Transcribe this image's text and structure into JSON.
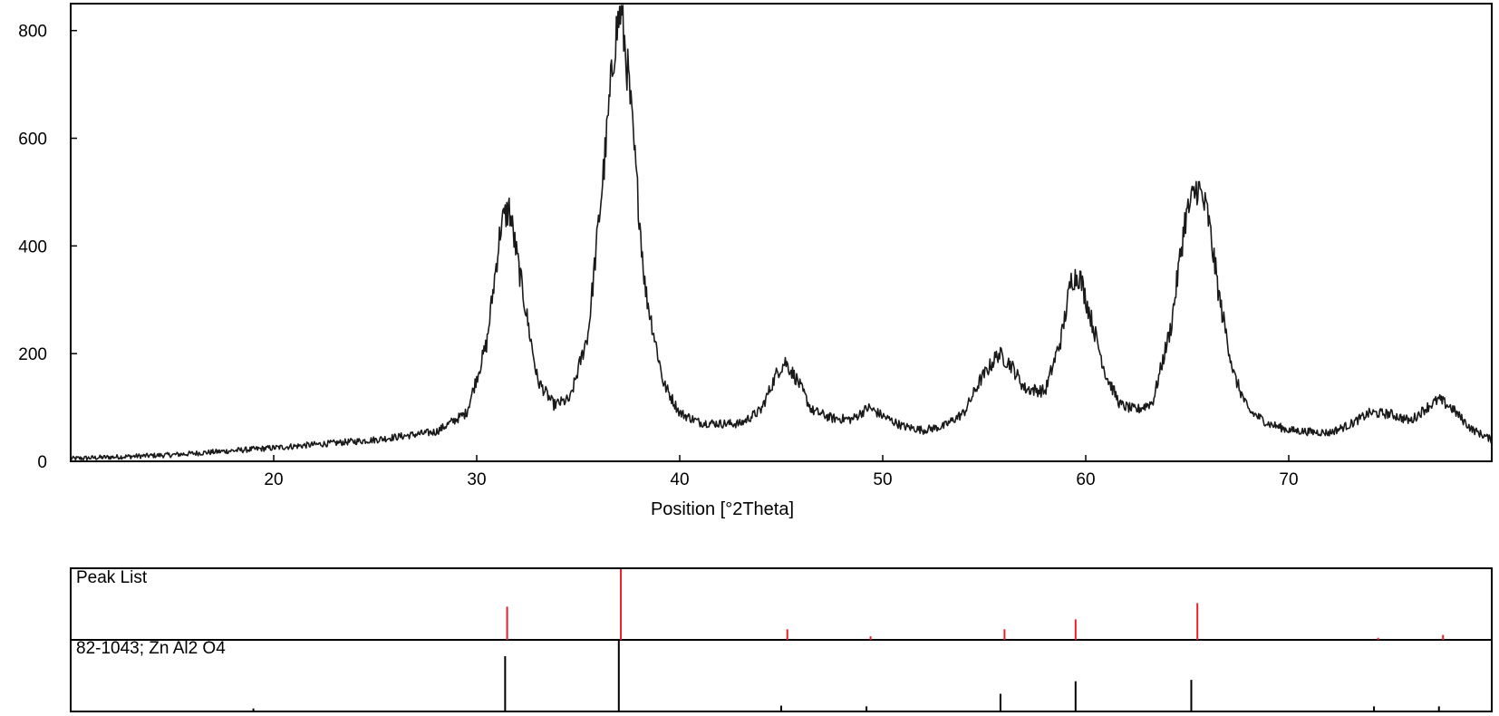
{
  "chart_data": {
    "type": "line",
    "xlabel": "Position [°2Theta]",
    "ylabel": "",
    "xlim": [
      10,
      80
    ],
    "ylim": [
      0,
      850
    ],
    "x_ticks": [
      20,
      30,
      40,
      50,
      60,
      70
    ],
    "y_ticks": [
      0,
      200,
      400,
      600,
      800
    ],
    "grid": false,
    "pattern_profile": [
      [
        10,
        5
      ],
      [
        15,
        12
      ],
      [
        20,
        25
      ],
      [
        25,
        40
      ],
      [
        28,
        55
      ],
      [
        29.5,
        90
      ],
      [
        30.5,
        220
      ],
      [
        31.2,
        440
      ],
      [
        31.6,
        470
      ],
      [
        32.2,
        330
      ],
      [
        33,
        150
      ],
      [
        33.8,
        105
      ],
      [
        34.6,
        115
      ],
      [
        35.5,
        240
      ],
      [
        36.3,
        560
      ],
      [
        36.8,
        780
      ],
      [
        37.1,
        840
      ],
      [
        37.5,
        700
      ],
      [
        38.3,
        320
      ],
      [
        39.2,
        145
      ],
      [
        40,
        90
      ],
      [
        41,
        72
      ],
      [
        42,
        70
      ],
      [
        43,
        70
      ],
      [
        44,
        95
      ],
      [
        44.8,
        165
      ],
      [
        45.2,
        185
      ],
      [
        45.8,
        150
      ],
      [
        46.5,
        95
      ],
      [
        47.5,
        80
      ],
      [
        48.5,
        78
      ],
      [
        49.3,
        100
      ],
      [
        50.2,
        80
      ],
      [
        51,
        65
      ],
      [
        52,
        58
      ],
      [
        53,
        65
      ],
      [
        54,
        90
      ],
      [
        54.8,
        150
      ],
      [
        55.7,
        200
      ],
      [
        56.3,
        180
      ],
      [
        57,
        135
      ],
      [
        58,
        130
      ],
      [
        58.8,
        230
      ],
      [
        59.3,
        340
      ],
      [
        59.7,
        345
      ],
      [
        60.3,
        260
      ],
      [
        61,
        160
      ],
      [
        61.7,
        105
      ],
      [
        62.5,
        95
      ],
      [
        63.3,
        110
      ],
      [
        64.2,
        250
      ],
      [
        64.9,
        450
      ],
      [
        65.5,
        512
      ],
      [
        66,
        460
      ],
      [
        66.6,
        300
      ],
      [
        67.3,
        160
      ],
      [
        68,
        95
      ],
      [
        69,
        70
      ],
      [
        70,
        58
      ],
      [
        71,
        55
      ],
      [
        72,
        53
      ],
      [
        73,
        68
      ],
      [
        74,
        90
      ],
      [
        75,
        88
      ],
      [
        76,
        75
      ],
      [
        76.8,
        100
      ],
      [
        77.4,
        115
      ],
      [
        78,
        100
      ],
      [
        79,
        60
      ],
      [
        80,
        40
      ]
    ],
    "peak_list": {
      "label": "Peak List",
      "color": "#e8202a",
      "peaks": [
        {
          "x": 31.5,
          "rel": 0.47
        },
        {
          "x": 37.1,
          "rel": 1.0
        },
        {
          "x": 45.3,
          "rel": 0.15
        },
        {
          "x": 49.4,
          "rel": 0.05
        },
        {
          "x": 56.0,
          "rel": 0.15
        },
        {
          "x": 59.5,
          "rel": 0.29
        },
        {
          "x": 65.5,
          "rel": 0.52
        },
        {
          "x": 74.4,
          "rel": 0.03
        },
        {
          "x": 77.6,
          "rel": 0.07
        }
      ]
    },
    "reference": {
      "label": "82-1043; Zn Al2 O4",
      "color": "#000000",
      "peaks": [
        {
          "x": 19.0,
          "rel": 0.03
        },
        {
          "x": 31.4,
          "rel": 0.78
        },
        {
          "x": 37.0,
          "rel": 1.0
        },
        {
          "x": 45.0,
          "rel": 0.07
        },
        {
          "x": 49.2,
          "rel": 0.06
        },
        {
          "x": 55.8,
          "rel": 0.24
        },
        {
          "x": 59.5,
          "rel": 0.42
        },
        {
          "x": 65.2,
          "rel": 0.44
        },
        {
          "x": 74.2,
          "rel": 0.06
        },
        {
          "x": 77.4,
          "rel": 0.06
        }
      ]
    }
  }
}
